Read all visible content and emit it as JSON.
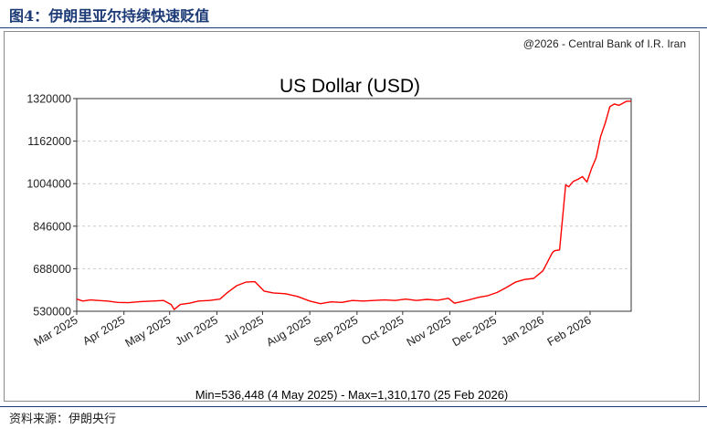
{
  "figure": {
    "title": "图4：伊朗里亚尔持续快速贬值",
    "source": "资料来源：伊朗央行"
  },
  "chart_data": {
    "type": "line",
    "copyright": "@2026 - Central Bank of I.R. Iran",
    "title": "US Dollar (USD)",
    "xlabel": "",
    "ylabel": "",
    "x_ticks": [
      "Mar 2025",
      "Apr 2025",
      "May 2025",
      "Jun 2025",
      "Jul 2025",
      "Aug 2025",
      "Sep 2025",
      "Oct 2025",
      "Nov 2025",
      "Dec 2025",
      "Jan 2026",
      "Feb 2026"
    ],
    "y_ticks": [
      "1320000",
      "1162000",
      "1004000",
      "846000",
      "688000",
      "530000"
    ],
    "ylim": [
      530000,
      1320000
    ],
    "xlim": [
      "2025-03-01",
      "2026-02-28"
    ],
    "grid": "dashed horizontal",
    "line_color": "#ff0000",
    "series": [
      {
        "x": [
          "2025-03-01",
          "2025-03-05",
          "2025-03-10",
          "2025-03-15",
          "2025-03-21",
          "2025-03-28",
          "2025-04-04",
          "2025-04-12",
          "2025-04-20",
          "2025-04-27",
          "2025-05-02",
          "2025-05-04",
          "2025-05-08",
          "2025-05-14",
          "2025-05-20",
          "2025-05-27",
          "2025-06-03",
          "2025-06-08",
          "2025-06-14",
          "2025-06-20",
          "2025-06-26",
          "2025-07-02",
          "2025-07-08",
          "2025-07-16",
          "2025-07-24",
          "2025-08-01",
          "2025-08-08",
          "2025-08-15",
          "2025-08-22",
          "2025-08-29",
          "2025-09-05",
          "2025-09-12",
          "2025-09-19",
          "2025-09-26",
          "2025-10-03",
          "2025-10-10",
          "2025-10-17",
          "2025-10-24",
          "2025-10-31",
          "2025-11-04",
          "2025-11-08",
          "2025-11-14",
          "2025-11-20",
          "2025-11-26",
          "2025-12-02",
          "2025-12-08",
          "2025-12-14",
          "2025-12-20",
          "2025-12-26",
          "2026-01-01",
          "2026-01-04",
          "2026-01-07",
          "2026-01-08",
          "2026-01-09",
          "2026-01-12",
          "2026-01-16",
          "2026-01-18",
          "2026-01-21",
          "2026-01-24",
          "2026-01-27",
          "2026-01-30",
          "2026-02-02",
          "2026-02-05",
          "2026-02-08",
          "2026-02-11",
          "2026-02-14",
          "2026-02-17",
          "2026-02-20",
          "2026-02-25",
          "2026-02-28"
        ],
        "y": [
          575000,
          568000,
          572000,
          570000,
          568000,
          563000,
          562000,
          566000,
          568000,
          570000,
          555000,
          536448,
          555000,
          560000,
          568000,
          570000,
          575000,
          600000,
          625000,
          638000,
          640000,
          605000,
          598000,
          595000,
          585000,
          568000,
          558000,
          565000,
          563000,
          570000,
          568000,
          570000,
          572000,
          570000,
          575000,
          570000,
          574000,
          571000,
          578000,
          560000,
          565000,
          573000,
          582000,
          588000,
          600000,
          618000,
          638000,
          648000,
          652000,
          680000,
          712000,
          745000,
          752000,
          755000,
          758000,
          1000000,
          992000,
          1012000,
          1020000,
          1030000,
          1010000,
          1060000,
          1100000,
          1180000,
          1230000,
          1290000,
          1300000,
          1295000,
          1310170,
          1310000
        ]
      }
    ],
    "annotation": "Min=536,448 (4 May 2025) - Max=1,310,170 (25 Feb 2026)"
  }
}
